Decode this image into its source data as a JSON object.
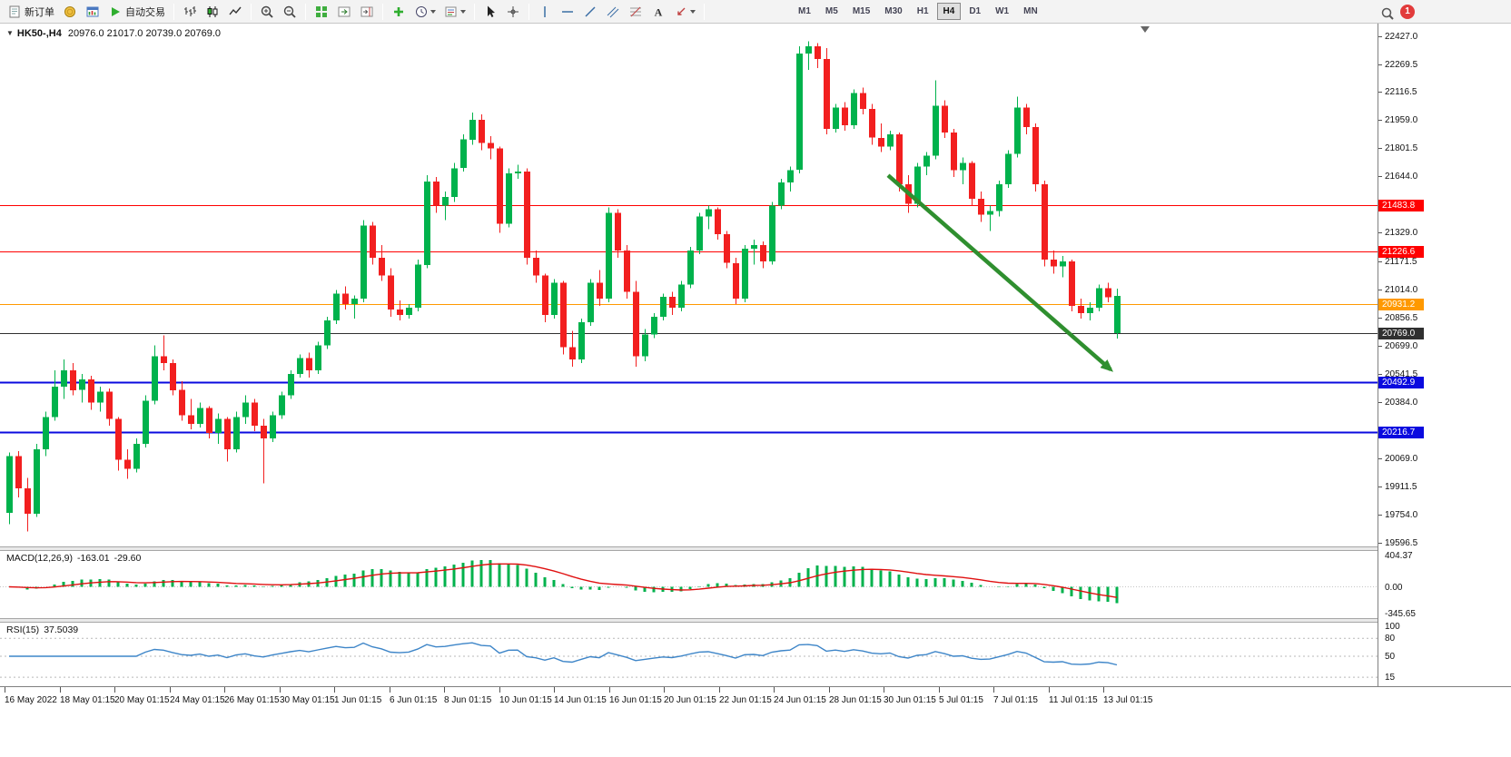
{
  "toolbar": {
    "notification_count": "1",
    "groups": [
      {
        "items": [
          {
            "name": "new-order-button",
            "icon": "new-order-icon",
            "label": "新订单"
          },
          {
            "name": "market-watch-button",
            "icon": "market-watch-icon"
          },
          {
            "name": "chart-window-button",
            "icon": "chart-window-icon"
          },
          {
            "name": "autotrade-button",
            "icon": "autotrade-icon",
            "label": "自动交易"
          }
        ]
      },
      {
        "items": [
          {
            "name": "bars-chart-button",
            "icon": "bars-icon"
          },
          {
            "name": "candles-chart-button",
            "icon": "candles-icon"
          },
          {
            "name": "line-chart-button",
            "icon": "line-chart-icon"
          }
        ]
      },
      {
        "items": [
          {
            "name": "zoom-in-button",
            "icon": "zoom-in-icon"
          },
          {
            "name": "zoom-out-button",
            "icon": "zoom-out-icon"
          }
        ]
      },
      {
        "items": [
          {
            "name": "tile-windows-button",
            "icon": "tile-windows-icon"
          },
          {
            "name": "auto-scroll-button",
            "icon": "autoscroll-icon"
          },
          {
            "name": "chart-shift-button",
            "icon": "chart-shift-icon"
          }
        ]
      },
      {
        "items": [
          {
            "name": "indicators-button",
            "icon": "indicators-icon"
          },
          {
            "name": "periods-button",
            "icon": "periods-icon",
            "dropdown": true
          },
          {
            "name": "templates-button",
            "icon": "templates-icon",
            "dropdown": true
          }
        ]
      },
      {
        "items": [
          {
            "name": "cursor-button",
            "icon": "cursor-icon"
          },
          {
            "name": "crosshair-button",
            "icon": "crosshair-icon"
          }
        ]
      },
      {
        "items": [
          {
            "name": "vertical-line-button",
            "icon": "vline-icon"
          },
          {
            "name": "horizontal-line-button",
            "icon": "hline-icon"
          },
          {
            "name": "trendline-button",
            "icon": "trendline-icon"
          },
          {
            "name": "channel-button",
            "icon": "channel-icon"
          },
          {
            "name": "fibonacci-button",
            "icon": "fibo-icon"
          },
          {
            "name": "text-button",
            "icon": "text-icon"
          },
          {
            "name": "arrows-button",
            "icon": "arrows-icon",
            "dropdown": true
          }
        ]
      },
      {
        "type": "timeframes",
        "active": "H4",
        "items": [
          "M1",
          "M5",
          "M15",
          "M30",
          "H1",
          "H4",
          "D1",
          "W1",
          "MN"
        ]
      }
    ]
  },
  "chart": {
    "symbol_period": "HK50-,H4",
    "ohlc": "20976.0 21017.0 20739.0 20769.0"
  },
  "colors": {
    "bull": "#00b24c",
    "bear": "#f21f1f",
    "macd_hist": "#00b24c",
    "macd_signal": "#e01010",
    "rsi_line": "#3d85c8"
  },
  "macd": {
    "name": "MACD(12,26,9)",
    "value_main": "-163.01",
    "value_signal": "-29.60",
    "axis": [
      "404.37",
      "0.00",
      "-345.65"
    ]
  },
  "rsi": {
    "name": "RSI(15)",
    "value": "37.5039",
    "axis": [
      "100",
      "80",
      "50",
      "15"
    ],
    "levels": [
      80,
      50,
      15
    ]
  },
  "price_axis": {
    "labels": [
      "22427.0",
      "22269.5",
      "22116.5",
      "21959.0",
      "21801.5",
      "21644.0",
      "21329.0",
      "21171.5",
      "21014.0",
      "20856.5",
      "20699.0",
      "20541.5",
      "20384.0",
      "20069.0",
      "19911.5",
      "19754.0",
      "19596.5"
    ]
  },
  "chart_data": {
    "type": "candlestick",
    "title": "HK50-,H4",
    "ylim": [
      19596.5,
      22427.0
    ],
    "x_labels": [
      "16 May 2022",
      "18 May 01:15",
      "20 May 01:15",
      "24 May 01:15",
      "26 May 01:15",
      "30 May 01:15",
      "1 Jun 01:15",
      "6 Jun 01:15",
      "8 Jun 01:15",
      "10 Jun 01:15",
      "14 Jun 01:15",
      "16 Jun 01:15",
      "20 Jun 01:15",
      "22 Jun 01:15",
      "24 Jun 01:15",
      "28 Jun 01:15",
      "30 Jun 01:15",
      "5 Jul 01:15",
      "7 Jul 01:15",
      "11 Jul 01:15",
      "13 Jul 01:15"
    ],
    "levels": [
      {
        "price": 21483.8,
        "label": "21483.8",
        "color": "#ff0000",
        "width": 1
      },
      {
        "price": 21226.6,
        "label": "21226.6",
        "color": "#ff0000",
        "width": 1
      },
      {
        "price": 20931.2,
        "label": "20931.2",
        "color": "#ff9900",
        "width": 1
      },
      {
        "price": 20769.0,
        "label": "20769.0",
        "color": "#303030",
        "width": 1
      },
      {
        "price": 20492.9,
        "label": "20492.9",
        "color": "#0a0adf",
        "width": 2
      },
      {
        "price": 20216.7,
        "label": "20216.7",
        "color": "#0a0adf",
        "width": 2
      }
    ],
    "arrow": {
      "from": {
        "bar": 96.8,
        "price": 21650
      },
      "to": {
        "bar": 121.3,
        "price": 20565
      },
      "color": "#2f8f2f"
    },
    "candles": [
      [
        19765,
        20100,
        19700,
        20080
      ],
      [
        20080,
        20110,
        19850,
        19900
      ],
      [
        19900,
        19960,
        19660,
        19760
      ],
      [
        19760,
        20150,
        19740,
        20120
      ],
      [
        20120,
        20330,
        20080,
        20300
      ],
      [
        20300,
        20560,
        20280,
        20470
      ],
      [
        20470,
        20620,
        20400,
        20560
      ],
      [
        20560,
        20600,
        20420,
        20450
      ],
      [
        20450,
        20540,
        20380,
        20510
      ],
      [
        20510,
        20530,
        20340,
        20380
      ],
      [
        20380,
        20470,
        20330,
        20440
      ],
      [
        20440,
        20460,
        20250,
        20290
      ],
      [
        20290,
        20300,
        20000,
        20060
      ],
      [
        20060,
        20120,
        19955,
        20010
      ],
      [
        20010,
        20180,
        19990,
        20150
      ],
      [
        20150,
        20420,
        20130,
        20390
      ],
      [
        20390,
        20700,
        20370,
        20640
      ],
      [
        20640,
        20755,
        20560,
        20600
      ],
      [
        20600,
        20620,
        20420,
        20450
      ],
      [
        20450,
        20500,
        20280,
        20310
      ],
      [
        20310,
        20400,
        20230,
        20260
      ],
      [
        20260,
        20380,
        20240,
        20350
      ],
      [
        20350,
        20360,
        20180,
        20210
      ],
      [
        20210,
        20320,
        20150,
        20290
      ],
      [
        20290,
        20300,
        20050,
        20120
      ],
      [
        20120,
        20330,
        20100,
        20300
      ],
      [
        20300,
        20420,
        20260,
        20380
      ],
      [
        20380,
        20400,
        20220,
        20250
      ],
      [
        20250,
        20290,
        19930,
        20180
      ],
      [
        20180,
        20330,
        20160,
        20310
      ],
      [
        20310,
        20440,
        20290,
        20420
      ],
      [
        20420,
        20560,
        20400,
        20540
      ],
      [
        20540,
        20650,
        20520,
        20630
      ],
      [
        20630,
        20660,
        20520,
        20560
      ],
      [
        20560,
        20720,
        20540,
        20700
      ],
      [
        20700,
        20860,
        20680,
        20840
      ],
      [
        20840,
        21010,
        20820,
        20990
      ],
      [
        20990,
        21030,
        20900,
        20930
      ],
      [
        20930,
        20980,
        20850,
        20960
      ],
      [
        20960,
        21400,
        20940,
        21370
      ],
      [
        21370,
        21390,
        21150,
        21190
      ],
      [
        21190,
        21260,
        21060,
        21090
      ],
      [
        21090,
        21130,
        20860,
        20900
      ],
      [
        20900,
        20950,
        20840,
        20870
      ],
      [
        20870,
        20930,
        20850,
        20910
      ],
      [
        20910,
        21180,
        20890,
        21150
      ],
      [
        21150,
        21650,
        21130,
        21615
      ],
      [
        21615,
        21640,
        21440,
        21480
      ],
      [
        21480,
        21560,
        21400,
        21530
      ],
      [
        21530,
        21720,
        21500,
        21690
      ],
      [
        21690,
        21880,
        21670,
        21850
      ],
      [
        21850,
        22000,
        21820,
        21960
      ],
      [
        21960,
        21990,
        21790,
        21830
      ],
      [
        21830,
        21870,
        21740,
        21800
      ],
      [
        21800,
        21810,
        21330,
        21380
      ],
      [
        21380,
        21690,
        21360,
        21660
      ],
      [
        21660,
        21710,
        21630,
        21670
      ],
      [
        21670,
        21690,
        21150,
        21190
      ],
      [
        21190,
        21230,
        21050,
        21090
      ],
      [
        21090,
        21100,
        20830,
        20870
      ],
      [
        20870,
        21070,
        20850,
        21050
      ],
      [
        21050,
        21060,
        20650,
        20690
      ],
      [
        20690,
        20780,
        20580,
        20620
      ],
      [
        20620,
        20850,
        20600,
        20830
      ],
      [
        20830,
        21070,
        20810,
        21050
      ],
      [
        21050,
        21120,
        20920,
        20960
      ],
      [
        20960,
        21470,
        20940,
        21440
      ],
      [
        21440,
        21460,
        21190,
        21230
      ],
      [
        21230,
        21260,
        20960,
        21000
      ],
      [
        21000,
        21060,
        20580,
        20640
      ],
      [
        20640,
        20790,
        20610,
        20760
      ],
      [
        20760,
        20880,
        20740,
        20860
      ],
      [
        20860,
        20990,
        20840,
        20970
      ],
      [
        20970,
        21000,
        20870,
        20910
      ],
      [
        20910,
        21060,
        20890,
        21040
      ],
      [
        21040,
        21250,
        21020,
        21230
      ],
      [
        21230,
        21440,
        21210,
        21420
      ],
      [
        21420,
        21480,
        21350,
        21460
      ],
      [
        21460,
        21470,
        21290,
        21320
      ],
      [
        21320,
        21340,
        21130,
        21160
      ],
      [
        21160,
        21190,
        20930,
        20960
      ],
      [
        20960,
        21260,
        20940,
        21240
      ],
      [
        21240,
        21290,
        21150,
        21260
      ],
      [
        21260,
        21280,
        21130,
        21170
      ],
      [
        21170,
        21500,
        21150,
        21480
      ],
      [
        21480,
        21630,
        21460,
        21610
      ],
      [
        21610,
        21700,
        21560,
        21680
      ],
      [
        21680,
        22370,
        21660,
        22330
      ],
      [
        22330,
        22400,
        22240,
        22370
      ],
      [
        22370,
        22390,
        22250,
        22300
      ],
      [
        22300,
        22360,
        21880,
        21910
      ],
      [
        21910,
        22050,
        21890,
        22030
      ],
      [
        22030,
        22060,
        21900,
        21930
      ],
      [
        21930,
        22130,
        21910,
        22110
      ],
      [
        22110,
        22140,
        21990,
        22020
      ],
      [
        22020,
        22050,
        21820,
        21860
      ],
      [
        21860,
        21940,
        21780,
        21810
      ],
      [
        21810,
        21900,
        21790,
        21880
      ],
      [
        21880,
        21890,
        21560,
        21600
      ],
      [
        21600,
        21650,
        21440,
        21490
      ],
      [
        21490,
        21720,
        21470,
        21700
      ],
      [
        21700,
        21780,
        21650,
        21760
      ],
      [
        21760,
        22180,
        21740,
        22040
      ],
      [
        22040,
        22070,
        21860,
        21890
      ],
      [
        21890,
        21910,
        21640,
        21680
      ],
      [
        21680,
        21750,
        21600,
        21720
      ],
      [
        21720,
        21730,
        21480,
        21520
      ],
      [
        21520,
        21560,
        21390,
        21430
      ],
      [
        21430,
        21480,
        21340,
        21450
      ],
      [
        21450,
        21620,
        21420,
        21600
      ],
      [
        21600,
        21790,
        21580,
        21770
      ],
      [
        21770,
        22090,
        21750,
        22030
      ],
      [
        22030,
        22050,
        21880,
        21920
      ],
      [
        21920,
        21940,
        21560,
        21600
      ],
      [
        21600,
        21620,
        21140,
        21180
      ],
      [
        21180,
        21230,
        21100,
        21140
      ],
      [
        21140,
        21200,
        21080,
        21170
      ],
      [
        21170,
        21180,
        20890,
        20920
      ],
      [
        20920,
        20960,
        20850,
        20880
      ],
      [
        20880,
        20940,
        20840,
        20910
      ],
      [
        20910,
        21040,
        20890,
        21020
      ],
      [
        21020,
        21050,
        20940,
        20970
      ],
      [
        20976,
        21017,
        20739,
        20769,
        "g"
      ]
    ]
  }
}
